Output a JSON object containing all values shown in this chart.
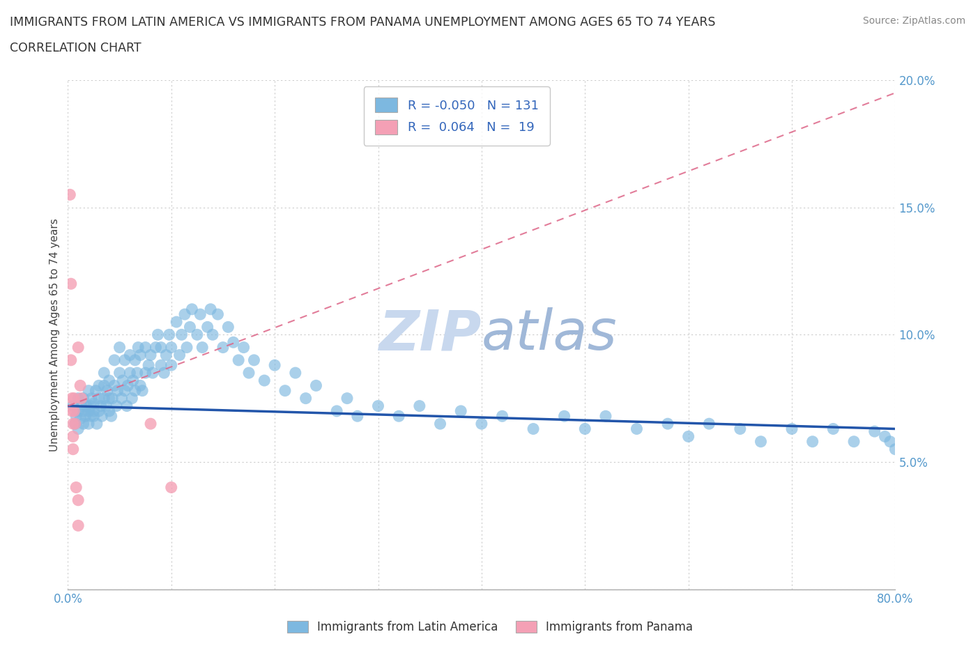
{
  "title_line1": "IMMIGRANTS FROM LATIN AMERICA VS IMMIGRANTS FROM PANAMA UNEMPLOYMENT AMONG AGES 65 TO 74 YEARS",
  "title_line2": "CORRELATION CHART",
  "source_text": "Source: ZipAtlas.com",
  "ylabel": "Unemployment Among Ages 65 to 74 years",
  "xmin": 0.0,
  "xmax": 0.8,
  "ymin": 0.0,
  "ymax": 0.2,
  "yticks": [
    0.0,
    0.05,
    0.1,
    0.15,
    0.2
  ],
  "ytick_labels": [
    "",
    "5.0%",
    "10.0%",
    "15.0%",
    "20.0%"
  ],
  "r_latin": -0.05,
  "n_latin": 131,
  "r_panama": 0.064,
  "n_panama": 19,
  "latin_color": "#7db8e0",
  "panama_color": "#f4a0b5",
  "latin_line_color": "#2255aa",
  "panama_line_color": "#dd6688",
  "watermark_color": "#c8d8ee",
  "background_color": "#ffffff",
  "grid_color": "#cccccc",
  "latin_scatter_x": [
    0.005,
    0.007,
    0.008,
    0.01,
    0.01,
    0.01,
    0.012,
    0.013,
    0.015,
    0.015,
    0.015,
    0.017,
    0.018,
    0.02,
    0.02,
    0.02,
    0.022,
    0.022,
    0.023,
    0.025,
    0.025,
    0.025,
    0.027,
    0.028,
    0.03,
    0.03,
    0.03,
    0.032,
    0.033,
    0.035,
    0.035,
    0.035,
    0.037,
    0.038,
    0.04,
    0.04,
    0.04,
    0.042,
    0.043,
    0.045,
    0.045,
    0.047,
    0.048,
    0.05,
    0.05,
    0.052,
    0.053,
    0.055,
    0.055,
    0.057,
    0.058,
    0.06,
    0.06,
    0.062,
    0.063,
    0.065,
    0.065,
    0.067,
    0.068,
    0.07,
    0.07,
    0.072,
    0.075,
    0.075,
    0.078,
    0.08,
    0.082,
    0.085,
    0.087,
    0.09,
    0.09,
    0.093,
    0.095,
    0.098,
    0.1,
    0.1,
    0.105,
    0.108,
    0.11,
    0.113,
    0.115,
    0.118,
    0.12,
    0.125,
    0.128,
    0.13,
    0.135,
    0.138,
    0.14,
    0.145,
    0.15,
    0.155,
    0.16,
    0.165,
    0.17,
    0.175,
    0.18,
    0.19,
    0.2,
    0.21,
    0.22,
    0.23,
    0.24,
    0.26,
    0.27,
    0.28,
    0.3,
    0.32,
    0.34,
    0.36,
    0.38,
    0.4,
    0.42,
    0.45,
    0.48,
    0.5,
    0.52,
    0.55,
    0.58,
    0.6,
    0.62,
    0.65,
    0.67,
    0.7,
    0.72,
    0.74,
    0.76,
    0.78,
    0.79,
    0.795,
    0.8
  ],
  "latin_scatter_y": [
    0.072,
    0.065,
    0.068,
    0.063,
    0.07,
    0.075,
    0.067,
    0.072,
    0.065,
    0.07,
    0.075,
    0.068,
    0.072,
    0.065,
    0.07,
    0.078,
    0.072,
    0.068,
    0.075,
    0.07,
    0.068,
    0.073,
    0.078,
    0.065,
    0.07,
    0.075,
    0.08,
    0.072,
    0.068,
    0.075,
    0.08,
    0.085,
    0.072,
    0.078,
    0.07,
    0.075,
    0.082,
    0.068,
    0.075,
    0.08,
    0.09,
    0.072,
    0.078,
    0.085,
    0.095,
    0.075,
    0.082,
    0.078,
    0.09,
    0.072,
    0.08,
    0.085,
    0.092,
    0.075,
    0.082,
    0.078,
    0.09,
    0.085,
    0.095,
    0.08,
    0.092,
    0.078,
    0.085,
    0.095,
    0.088,
    0.092,
    0.085,
    0.095,
    0.1,
    0.088,
    0.095,
    0.085,
    0.092,
    0.1,
    0.088,
    0.095,
    0.105,
    0.092,
    0.1,
    0.108,
    0.095,
    0.103,
    0.11,
    0.1,
    0.108,
    0.095,
    0.103,
    0.11,
    0.1,
    0.108,
    0.095,
    0.103,
    0.097,
    0.09,
    0.095,
    0.085,
    0.09,
    0.082,
    0.088,
    0.078,
    0.085,
    0.075,
    0.08,
    0.07,
    0.075,
    0.068,
    0.072,
    0.068,
    0.072,
    0.065,
    0.07,
    0.065,
    0.068,
    0.063,
    0.068,
    0.063,
    0.068,
    0.063,
    0.065,
    0.06,
    0.065,
    0.063,
    0.058,
    0.063,
    0.058,
    0.063,
    0.058,
    0.062,
    0.06,
    0.058,
    0.055
  ],
  "panama_scatter_x": [
    0.002,
    0.003,
    0.003,
    0.004,
    0.004,
    0.005,
    0.005,
    0.005,
    0.006,
    0.006,
    0.007,
    0.008,
    0.01,
    0.01,
    0.01,
    0.012,
    0.013,
    0.08,
    0.1
  ],
  "panama_scatter_y": [
    0.155,
    0.12,
    0.09,
    0.075,
    0.07,
    0.065,
    0.06,
    0.055,
    0.075,
    0.07,
    0.065,
    0.04,
    0.035,
    0.025,
    0.095,
    0.08,
    0.075,
    0.065,
    0.04
  ],
  "latin_line_y_start": 0.072,
  "latin_line_y_end": 0.063,
  "panama_line_y_start": 0.072,
  "panama_line_y_end": 0.195
}
